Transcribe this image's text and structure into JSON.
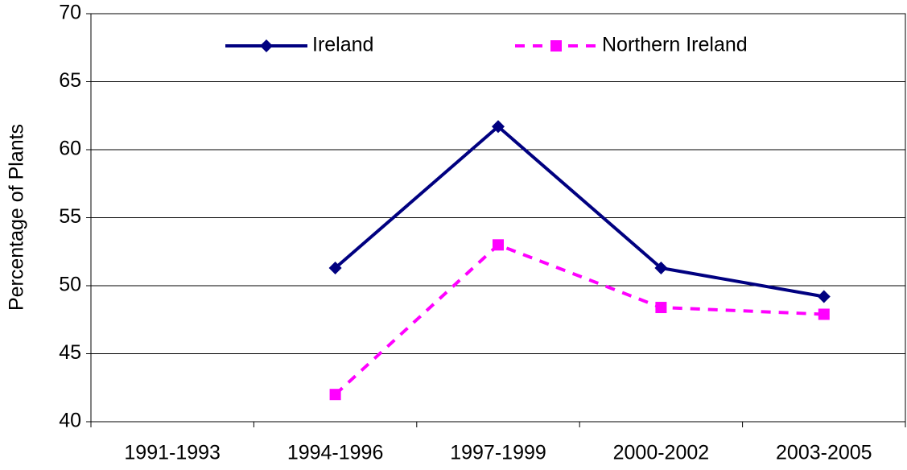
{
  "chart_data": {
    "type": "line",
    "y_label": "Percentage of Plants",
    "categories": [
      "1991-1993",
      "1994-1996",
      "1997-1999",
      "2000-2002",
      "2003-2005"
    ],
    "series": [
      {
        "name": "Ireland",
        "color": "#000080",
        "values": [
          null,
          51.3,
          61.7,
          51.3,
          49.2
        ]
      },
      {
        "name": "Northern Ireland",
        "color": "#ff00ff",
        "values": [
          null,
          42.0,
          53.0,
          48.4,
          47.9
        ]
      }
    ],
    "ylim": [
      40,
      70
    ],
    "yticks": [
      40,
      45,
      50,
      55,
      60,
      65,
      70
    ],
    "grid": true,
    "legend": "top"
  }
}
